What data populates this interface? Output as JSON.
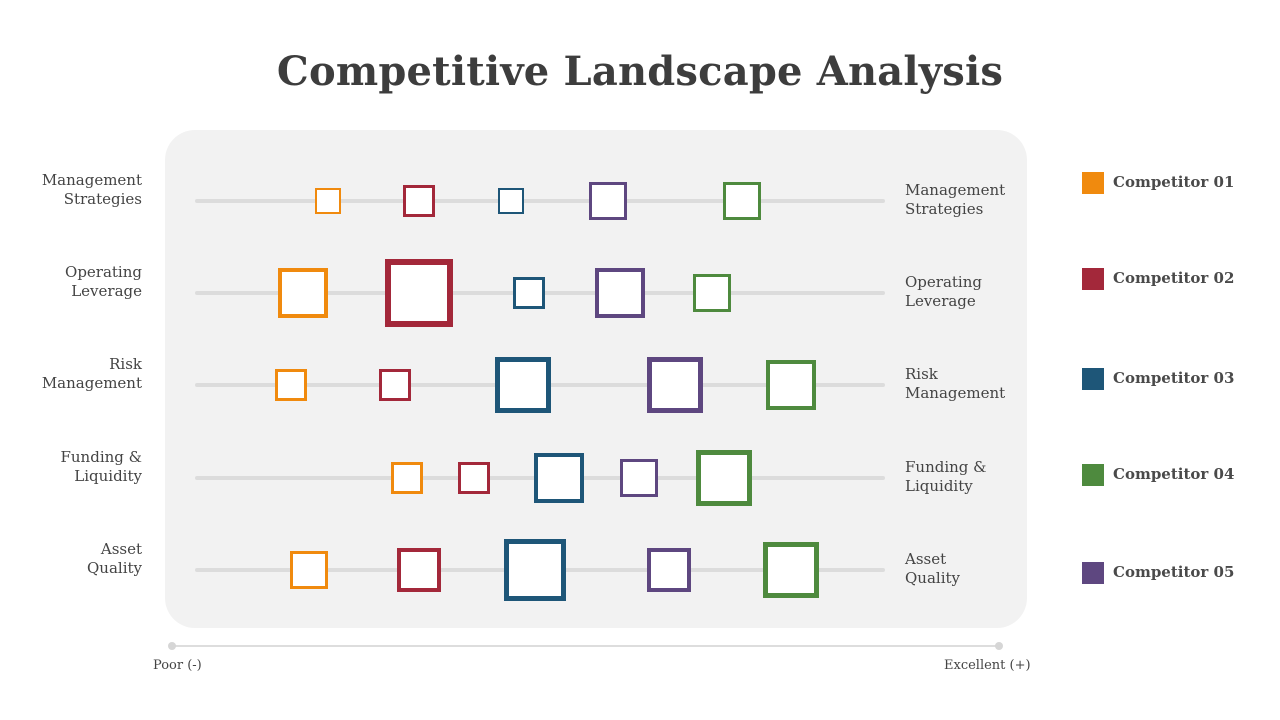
{
  "title": "Competitive Landscape Analysis",
  "scale": {
    "poor_label": "Poor (-)",
    "excellent_label": "Excellent (+)"
  },
  "colors": {
    "Competitor 01": "#f08a0e",
    "Competitor 02": "#a3283a",
    "Competitor 03": "#1e5678",
    "Competitor 04": "#4e8a3e",
    "Competitor 05": "#5e4780"
  },
  "legend": [
    {
      "name": "Competitor 01",
      "color": "#f08a0e"
    },
    {
      "name": "Competitor 02",
      "color": "#a3283a"
    },
    {
      "name": "Competitor 03",
      "color": "#1e5678"
    },
    {
      "name": "Competitor 04",
      "color": "#4e8a3e"
    },
    {
      "name": "Competitor 05",
      "color": "#5e4780"
    }
  ],
  "chart_data": {
    "type": "scatter",
    "title": "Competitive Landscape Analysis",
    "x_axis": {
      "min_label": "Poor (-)",
      "max_label": "Excellent (+)",
      "range": [
        0,
        100
      ]
    },
    "categories": [
      {
        "label_line1": "Management",
        "label_line2": "Strategies"
      },
      {
        "label_line1": "Operating",
        "label_line2": "Leverage"
      },
      {
        "label_line1": "Risk",
        "label_line2": "Management"
      },
      {
        "label_line1": "Funding &",
        "label_line2": "Liquidity"
      },
      {
        "label_line1": "Asset",
        "label_line2": "Quality"
      }
    ],
    "series": [
      {
        "name": "Competitor 01",
        "color": "#f08a0e",
        "values": [
          16,
          12,
          10,
          29,
          13
        ],
        "sizes": [
          2,
          6,
          3,
          3,
          4
        ]
      },
      {
        "name": "Competitor 02",
        "color": "#a3283a",
        "values": [
          31,
          31,
          27,
          40,
          31
        ],
        "sizes": [
          3,
          9,
          3,
          3,
          5
        ]
      },
      {
        "name": "Competitor 03",
        "color": "#1e5678",
        "values": [
          46,
          49,
          48,
          54,
          50
        ],
        "sizes": [
          2,
          3,
          7,
          6,
          8
        ]
      },
      {
        "name": "Competitor 04",
        "color": "#4e8a3e",
        "values": [
          84,
          79,
          92,
          81,
          92
        ],
        "sizes": [
          4,
          4,
          6,
          7,
          7
        ]
      },
      {
        "name": "Competitor 05",
        "color": "#5e4780",
        "values": [
          62,
          64,
          73,
          67,
          72
        ],
        "sizes": [
          4,
          6,
          7,
          4,
          5
        ]
      }
    ]
  }
}
